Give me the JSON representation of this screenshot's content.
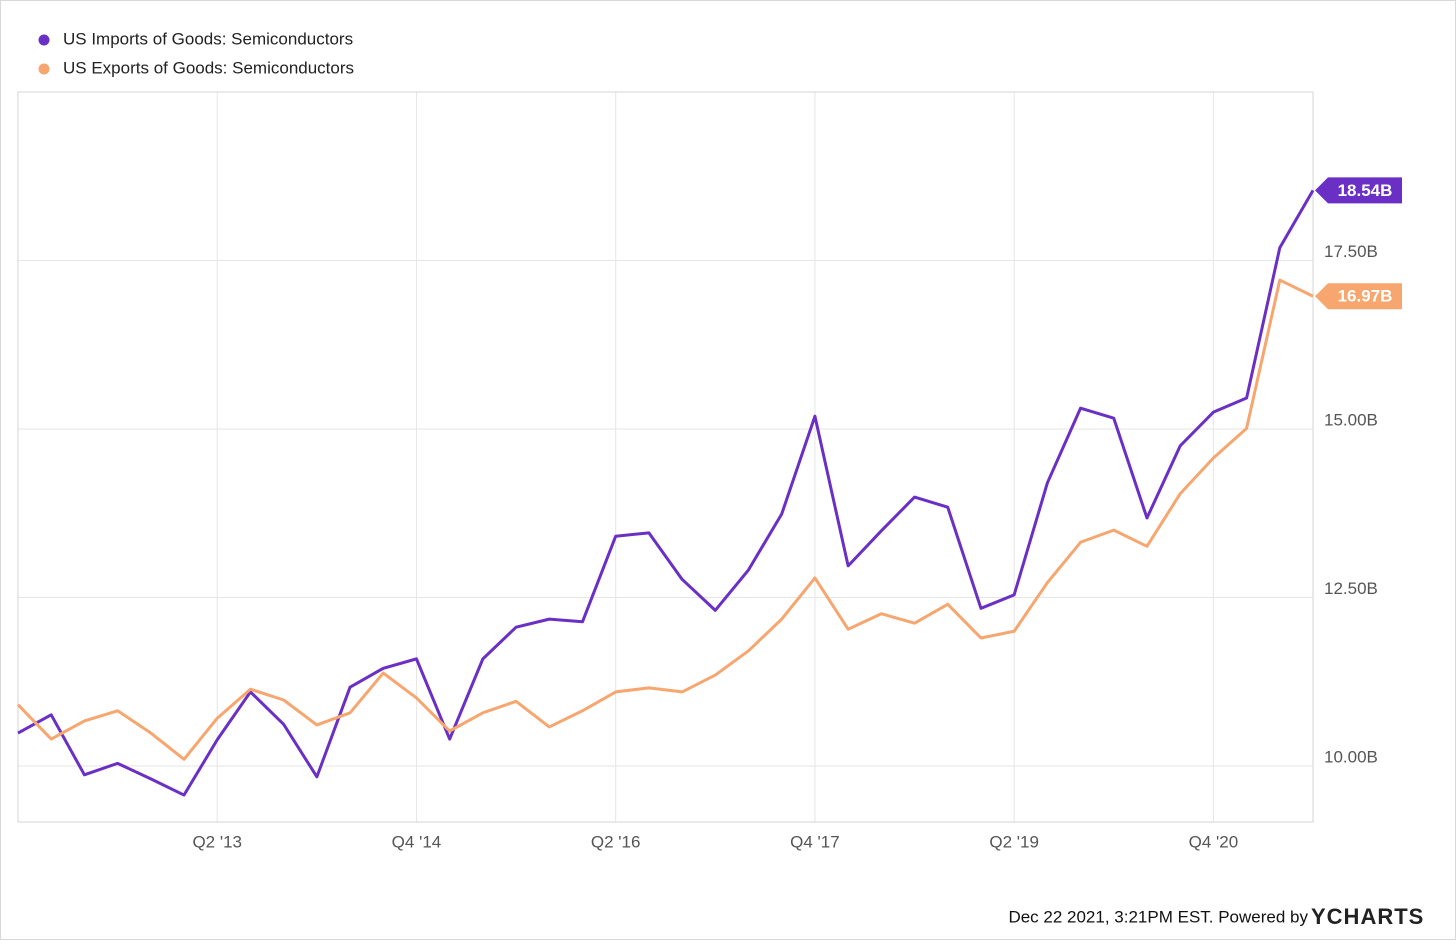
{
  "chart_data": {
    "type": "line",
    "categories": [
      null,
      null,
      null,
      null,
      null,
      null,
      "Q2 '13",
      null,
      null,
      null,
      null,
      null,
      "Q4 '14",
      null,
      null,
      null,
      null,
      null,
      "Q2 '16",
      null,
      null,
      null,
      null,
      null,
      "Q4 '17",
      null,
      null,
      null,
      null,
      null,
      "Q2 '19",
      null,
      null,
      null,
      null,
      null,
      "Q4 '20",
      null,
      null,
      null
    ],
    "series": [
      {
        "name": "US Imports of Goods: Semiconductors",
        "color": "#6a2fc4",
        "values": [
          10.49,
          10.76,
          9.87,
          10.04,
          9.81,
          9.57,
          10.39,
          11.1,
          10.62,
          9.84,
          11.17,
          11.45,
          11.59,
          10.4,
          11.59,
          12.06,
          12.18,
          12.14,
          13.41,
          13.46,
          12.77,
          12.31,
          12.91,
          13.74,
          15.19,
          12.97,
          13.49,
          13.99,
          13.84,
          12.34,
          12.54,
          14.2,
          15.31,
          15.16,
          13.68,
          14.75,
          15.25,
          15.46,
          17.69,
          18.54
        ],
        "value_labels": [
          null,
          null,
          null,
          null,
          null,
          null,
          null,
          null,
          null,
          null,
          null,
          null,
          null,
          null,
          null,
          null,
          null,
          null,
          null,
          null,
          null,
          null,
          null,
          null,
          null,
          null,
          null,
          null,
          null,
          null,
          null,
          null,
          null,
          null,
          null,
          null,
          null,
          null,
          null,
          "18.54B"
        ]
      },
      {
        "name": "US Exports of Goods: Semiconductors",
        "color": "#f6a66e",
        "values": [
          10.91,
          10.4,
          10.67,
          10.82,
          10.49,
          10.1,
          10.71,
          11.14,
          10.98,
          10.61,
          10.79,
          11.38,
          11.01,
          10.52,
          10.79,
          10.96,
          10.58,
          10.82,
          11.1,
          11.16,
          11.1,
          11.35,
          11.71,
          12.18,
          12.79,
          12.03,
          12.26,
          12.12,
          12.4,
          11.9,
          12.0,
          12.72,
          13.32,
          13.5,
          13.26,
          14.04,
          14.57,
          15.01,
          17.21,
          16.97
        ],
        "value_labels": [
          null,
          null,
          null,
          null,
          null,
          null,
          null,
          null,
          null,
          null,
          null,
          null,
          null,
          null,
          null,
          null,
          null,
          null,
          null,
          null,
          null,
          null,
          null,
          null,
          null,
          null,
          null,
          null,
          null,
          null,
          null,
          null,
          null,
          null,
          null,
          null,
          null,
          null,
          null,
          "16.97B"
        ]
      }
    ],
    "ylim": [
      9.17,
      20.0
    ],
    "yticks": [
      {
        "value": 10,
        "label": "10.00B"
      },
      {
        "value": 12.5,
        "label": "12.50B"
      },
      {
        "value": 15,
        "label": "15.00B"
      },
      {
        "value": 17.5,
        "label": "17.50B"
      }
    ],
    "grid": true,
    "legend": "top-left",
    "source": "Dec 22 2021, 3:21PM EST. Powered by",
    "brand": "YCHARTS"
  }
}
